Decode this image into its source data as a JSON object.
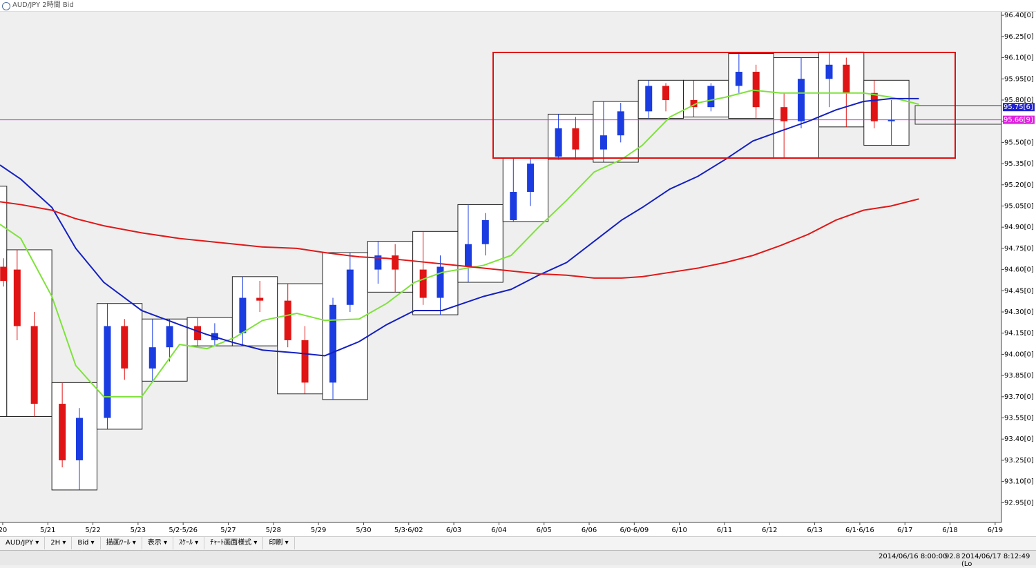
{
  "window": {
    "title": "AUD/JPY 2時間 Bid"
  },
  "toolbar": [
    "AUD/JPY ▾",
    "2H ▾",
    "Bid ▾",
    "描画ﾂｰﾙ ▾",
    "表示 ▾",
    "ｽｹｰﾙ ▾",
    "ﾁｬｰﾄ画面様式 ▾",
    "印刷 ▾"
  ],
  "status_bar": [
    "2014/06/16 8:00:00",
    "92.8",
    "2014/06/17 8:12:49 (Lo"
  ],
  "chart_data": {
    "type": "candlestick",
    "grid": false,
    "xlim": [
      -0.06,
      22.14
    ],
    "ylim": [
      92.81,
      96.43
    ],
    "xticks": [
      {
        "value": 0,
        "label": "20"
      },
      {
        "value": 1,
        "label": "5/21"
      },
      {
        "value": 2,
        "label": "5/22"
      },
      {
        "value": 3,
        "label": "5/23"
      },
      {
        "value": 4,
        "label": "5/2·5/26"
      },
      {
        "value": 5,
        "label": "5/27"
      },
      {
        "value": 6,
        "label": "5/28"
      },
      {
        "value": 7,
        "label": "5/29"
      },
      {
        "value": 8,
        "label": "5/30"
      },
      {
        "value": 9,
        "label": "5/3·6/02"
      },
      {
        "value": 10,
        "label": "6/03"
      },
      {
        "value": 11,
        "label": "6/04"
      },
      {
        "value": 12,
        "label": "6/05"
      },
      {
        "value": 13,
        "label": "6/06"
      },
      {
        "value": 14,
        "label": "6/0·6/09"
      },
      {
        "value": 15,
        "label": "6/10"
      },
      {
        "value": 16,
        "label": "6/11"
      },
      {
        "value": 17,
        "label": "6/12"
      },
      {
        "value": 18,
        "label": "6/13"
      },
      {
        "value": 19,
        "label": "6/1·6/16"
      },
      {
        "value": 20,
        "label": "6/17"
      },
      {
        "value": 21,
        "label": "6/18"
      },
      {
        "value": 22,
        "label": "6/19"
      }
    ],
    "yticks": [
      {
        "value": 96.4,
        "label": "96.40[0]"
      },
      {
        "value": 96.25,
        "label": "96.25[0]"
      },
      {
        "value": 96.1,
        "label": "96.10[0]"
      },
      {
        "value": 95.95,
        "label": "95.95[0]"
      },
      {
        "value": 95.8,
        "label": "95.80[0]"
      },
      {
        "value": 95.65,
        "label": "95.65[0]"
      },
      {
        "value": 95.5,
        "label": "95.50[0]"
      },
      {
        "value": 95.35,
        "label": "95.35[0]"
      },
      {
        "value": 95.2,
        "label": "95.20[0]"
      },
      {
        "value": 95.05,
        "label": "95.05[0]"
      },
      {
        "value": 94.9,
        "label": "94.90[0]"
      },
      {
        "value": 94.75,
        "label": "94.75[0]"
      },
      {
        "value": 94.6,
        "label": "94.60[0]"
      },
      {
        "value": 94.45,
        "label": "94.45[0]"
      },
      {
        "value": 94.3,
        "label": "94.30[0]"
      },
      {
        "value": 94.15,
        "label": "94.15[0]"
      },
      {
        "value": 94.0,
        "label": "94.00[0]"
      },
      {
        "value": 93.85,
        "label": "93.85[0]"
      },
      {
        "value": 93.7,
        "label": "93.70[0]"
      },
      {
        "value": 93.55,
        "label": "93.55[0]"
      },
      {
        "value": 93.4,
        "label": "93.40[0]"
      },
      {
        "value": 93.25,
        "label": "93.25[0]"
      },
      {
        "value": 93.1,
        "label": "93.10[0]"
      },
      {
        "value": 92.95,
        "label": "92.95[0]"
      }
    ],
    "day_ranges": {
      "high": [
        95.19,
        94.74,
        93.8,
        94.36,
        94.25,
        94.26,
        94.55,
        94.5,
        94.72,
        94.8,
        94.87,
        95.06,
        95.39,
        95.7,
        95.79,
        95.94,
        95.94,
        96.13,
        96.1,
        96.14,
        95.94
      ],
      "low": [
        93.56,
        93.56,
        93.04,
        93.47,
        93.81,
        94.06,
        94.06,
        93.72,
        93.68,
        94.44,
        94.28,
        94.51,
        94.94,
        95.38,
        95.36,
        95.67,
        95.68,
        95.67,
        95.39,
        95.61,
        95.48
      ]
    },
    "candles": {
      "up_color": "#1a3ce0",
      "down_color": "#e01414",
      "x": [
        0.02,
        0.32,
        0.7,
        1.32,
        1.7,
        2.32,
        2.7,
        3.32,
        3.7,
        4.32,
        4.7,
        5.32,
        5.7,
        6.32,
        6.7,
        7.32,
        7.7,
        8.32,
        8.7,
        9.32,
        9.7,
        10.32,
        10.7,
        11.32,
        11.7,
        12.32,
        12.7,
        13.32,
        13.7,
        14.32,
        14.7,
        15.32,
        15.7,
        16.32,
        16.7,
        17.32,
        17.7,
        18.32,
        18.7,
        19.32,
        19.7
      ],
      "open": [
        94.62,
        94.6,
        94.2,
        93.65,
        93.25,
        93.55,
        94.2,
        93.9,
        94.05,
        94.2,
        94.1,
        94.15,
        94.4,
        94.38,
        94.1,
        93.8,
        94.35,
        94.6,
        94.7,
        94.6,
        94.4,
        94.62,
        94.78,
        94.95,
        95.15,
        95.4,
        95.6,
        95.45,
        95.55,
        95.72,
        95.9,
        95.8,
        95.75,
        95.9,
        96.0,
        95.75,
        95.65,
        95.95,
        96.05,
        95.85,
        95.65
      ],
      "high": [
        94.68,
        94.74,
        94.3,
        93.8,
        93.62,
        94.36,
        94.25,
        94.25,
        94.25,
        94.26,
        94.22,
        94.55,
        94.52,
        94.5,
        94.2,
        94.4,
        94.72,
        94.8,
        94.78,
        94.87,
        94.7,
        95.06,
        95.0,
        95.39,
        95.39,
        95.7,
        95.68,
        95.79,
        95.78,
        95.94,
        95.92,
        95.94,
        95.92,
        96.13,
        96.05,
        95.85,
        96.1,
        96.14,
        96.1,
        95.94,
        95.8
      ],
      "low": [
        94.48,
        94.1,
        93.56,
        93.2,
        93.04,
        93.47,
        93.82,
        93.81,
        93.95,
        94.06,
        94.06,
        94.06,
        94.3,
        94.05,
        93.72,
        93.68,
        94.3,
        94.5,
        94.44,
        94.35,
        94.28,
        94.51,
        94.7,
        94.94,
        95.05,
        95.38,
        95.38,
        95.36,
        95.5,
        95.67,
        95.72,
        95.68,
        95.72,
        95.85,
        95.67,
        95.39,
        95.6,
        95.75,
        95.61,
        95.6,
        95.48
      ],
      "close": [
        94.52,
        94.2,
        93.65,
        93.25,
        93.55,
        94.2,
        93.9,
        94.05,
        94.2,
        94.1,
        94.15,
        94.4,
        94.38,
        94.1,
        93.8,
        94.35,
        94.6,
        94.7,
        94.6,
        94.4,
        94.62,
        94.78,
        94.95,
        95.15,
        95.35,
        95.6,
        95.45,
        95.55,
        95.72,
        95.9,
        95.8,
        95.75,
        95.9,
        96.0,
        95.75,
        95.65,
        95.95,
        96.05,
        95.85,
        95.65,
        95.66
      ]
    },
    "x": [
      -0.06,
      0.4,
      1.09,
      1.62,
      2.24,
      3.08,
      3.92,
      4.53,
      5.15,
      5.76,
      6.52,
      7.14,
      7.9,
      8.51,
      9.13,
      9.74,
      10.66,
      11.27,
      11.88,
      12.5,
      13.11,
      13.72,
      14.18,
      14.79,
      15.41,
      16.02,
      16.63,
      17.24,
      17.86,
      18.47,
      19.08,
      19.69,
      20.31
    ],
    "series": [
      {
        "color": "#7ee23a",
        "values": [
          94.92,
          94.82,
          94.41,
          93.92,
          93.7,
          93.7,
          94.07,
          94.04,
          94.12,
          94.24,
          94.29,
          94.24,
          94.25,
          94.36,
          94.51,
          94.58,
          94.63,
          94.7,
          94.9,
          95.09,
          95.29,
          95.38,
          95.48,
          95.68,
          95.78,
          95.82,
          95.87,
          95.85,
          95.85,
          95.85,
          95.85,
          95.82,
          95.77
        ]
      },
      {
        "color": "#1420c0",
        "values": [
          95.34,
          95.24,
          95.04,
          94.75,
          94.51,
          94.31,
          94.21,
          94.14,
          94.08,
          94.03,
          94.01,
          93.99,
          94.09,
          94.21,
          94.31,
          94.31,
          94.41,
          94.46,
          94.56,
          94.65,
          94.8,
          94.95,
          95.04,
          95.17,
          95.26,
          95.38,
          95.51,
          95.58,
          95.65,
          95.73,
          95.79,
          95.81,
          95.81
        ]
      },
      {
        "color": "#e01818",
        "values": [
          95.08,
          95.06,
          95.02,
          94.96,
          94.91,
          94.86,
          94.82,
          94.8,
          94.78,
          94.76,
          94.75,
          94.72,
          94.69,
          94.68,
          94.66,
          94.64,
          94.61,
          94.59,
          94.57,
          94.56,
          94.54,
          94.54,
          94.55,
          94.58,
          94.61,
          94.65,
          94.7,
          94.77,
          94.85,
          94.95,
          95.02,
          95.05,
          95.1
        ]
      }
    ],
    "price_lines": [
      {
        "value": 95.75,
        "label": "95.75[6]",
        "color": "#2020d0",
        "line": false
      },
      {
        "value": 95.66,
        "label": "95.66[9]",
        "color": "#e020e0",
        "line": true
      }
    ]
  }
}
